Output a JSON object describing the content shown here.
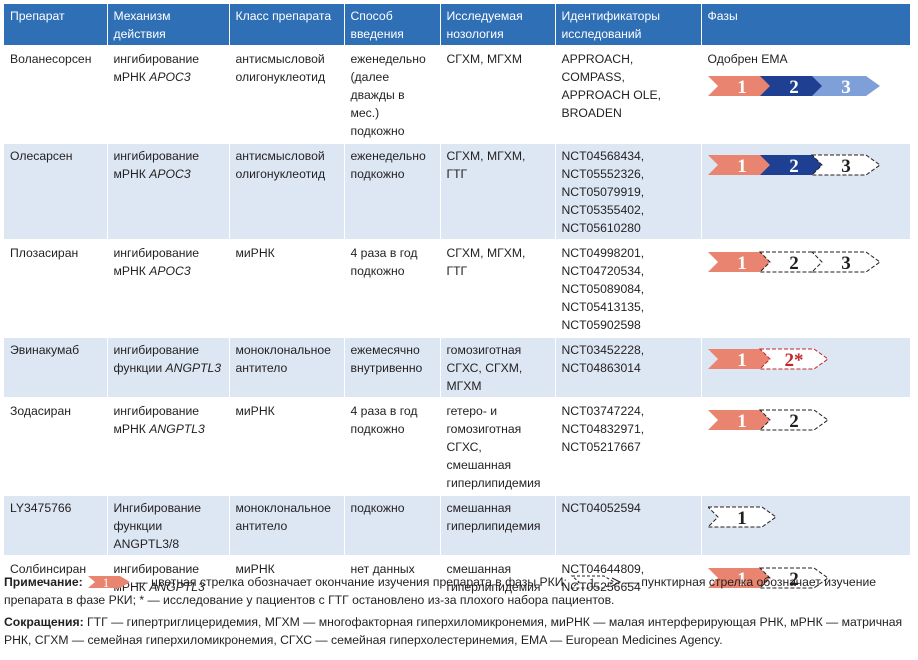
{
  "headers": [
    "Препарат",
    "Механизм действия",
    "Класс препарата",
    "Способ введения",
    "Исследуемая нозология",
    "Идентификаторы исследований",
    "Фазы"
  ],
  "rows": [
    {
      "drug": "Воланесорсен",
      "mech": "ингибирование мРНК",
      "mech_gene": "APOC3",
      "cls": "антисмысловой олигонуклеотид",
      "route": "еженедельно (далее дважды в мес.) подкожно",
      "nos": "СГХМ, МГХМ",
      "ids": [
        "APPROACH, COMPASS,",
        "APPROACH OLE,",
        "BROADEN"
      ],
      "phase_note": "Одобрен EMA",
      "phases": [
        {
          "label": "1",
          "style": "salmon"
        },
        {
          "label": "2",
          "style": "navy"
        },
        {
          "label": "3",
          "style": "lightblue"
        }
      ]
    },
    {
      "drug": "Олесарсен",
      "mech": "ингибирование мРНК",
      "mech_gene": "APOC3",
      "cls": "антисмысловой олигонуклеотид",
      "route": "еженедельно подкожно",
      "nos": "СГХМ, МГХМ, ГТГ",
      "ids": [
        "NCT04568434,",
        "NCT05552326,",
        "NCT05079919,",
        "NCT05355402,",
        "NCT05610280"
      ],
      "phase_note": "",
      "phases": [
        {
          "label": "1",
          "style": "salmon"
        },
        {
          "label": "2",
          "style": "navy"
        },
        {
          "label": "3",
          "style": "dashed"
        }
      ]
    },
    {
      "drug": "Плозасиран",
      "mech": "ингибирование мРНК",
      "mech_gene": "APOC3",
      "cls": "миРНК",
      "route": "4 раза в год подкожно",
      "nos": "СГХМ, МГХМ, ГТГ",
      "ids": [
        "NCT04998201,",
        "NCT04720534,",
        "NCT05089084,",
        "NCT05413135,",
        "NCT05902598"
      ],
      "phase_note": "",
      "phases": [
        {
          "label": "1",
          "style": "salmon"
        },
        {
          "label": "2",
          "style": "dashed"
        },
        {
          "label": "3",
          "style": "dashed"
        }
      ]
    },
    {
      "drug": "Эвинакумаб",
      "mech": "ингибирование функции",
      "mech_gene": "ANGPTL3",
      "cls": "моноклональное антитело",
      "route": "ежемесячно внутривенно",
      "nos": "гомозиготная СГХС, СГХМ, МГХМ",
      "ids": [
        "NCT03452228,",
        "NCT04863014"
      ],
      "phase_note": "",
      "phases": [
        {
          "label": "1",
          "style": "salmon"
        },
        {
          "label": "2*",
          "style": "dashed-red"
        }
      ]
    },
    {
      "drug": "Зодасиран",
      "mech": "ингибирование мРНК",
      "mech_gene": "ANGPTL3",
      "cls": "миРНК",
      "route": "4 раза в год подкожно",
      "nos": "гетеро- и гомозиготная СГХС, смешанная гиперлипидемия",
      "ids": [
        "NCT03747224,",
        "NCT04832971,",
        "NCT05217667"
      ],
      "phase_note": "",
      "phases": [
        {
          "label": "1",
          "style": "salmon"
        },
        {
          "label": "2",
          "style": "dashed"
        }
      ]
    },
    {
      "drug": "LY3475766",
      "mech": "Ингибирование функции ANGPTL3/8",
      "mech_gene": "",
      "cls": "моноклональное антитело",
      "route": "подкожно",
      "nos": "смешанная гиперлипидемия",
      "ids": [
        "NCT04052594"
      ],
      "phase_note": "",
      "phases": [
        {
          "label": "1",
          "style": "dashed"
        }
      ]
    },
    {
      "drug": "Солбинсиран",
      "mech": "ингибирование мРНК",
      "mech_gene": "ANGPTL3",
      "cls": "миРНК",
      "route": "нет данных",
      "nos": "смешанная гиперлипидемия",
      "ids": [
        "NCT04644809,",
        "NCT05256654"
      ],
      "phase_note": "",
      "phases": [
        {
          "label": "1",
          "style": "salmon"
        },
        {
          "label": "2",
          "style": "dashed"
        }
      ]
    }
  ],
  "note": {
    "label": "Примечание:",
    "text1": "— цветная стрелка обозначает окончание изучения препарата в фазы РКИ;",
    "text2": "— пунктирная стрелка обозначает изучение препарата в фазе РКИ; * — исследование у пациентов с ГТГ остановлено из-за плохого набора пациентов."
  },
  "abbr": {
    "label": "Сокращения:",
    "text": "ГТГ — гипертриглицеридемия, МГХМ — многофакторная гиперхиломикронемия, миРНК — малая интерферирующая РНК, мРНК — матричная РНК, СГХМ — семейная гиперхиломикронемия, СГХС — семейная гиперхолестеринемия, EMA — European Medicines Agency."
  },
  "colors": {
    "header": "#2f6fb5",
    "row_alt": "#dde7f4",
    "salmon": "#e8846f",
    "navy": "#1f3f93",
    "lightblue": "#7f9fd8",
    "red": "#c1272d"
  }
}
